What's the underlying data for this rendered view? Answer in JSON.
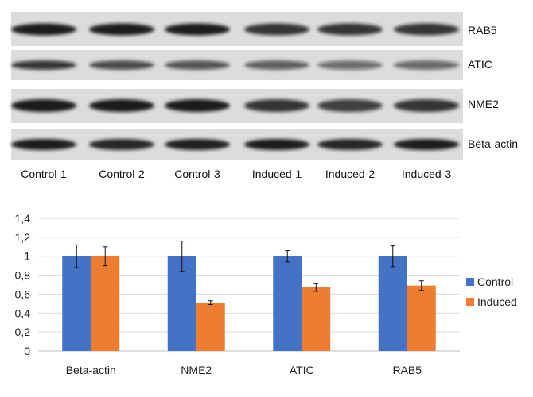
{
  "blot": {
    "proteins": [
      "RAB5",
      "ATIC",
      "NME2",
      "Beta-actin"
    ],
    "samples": [
      "Control-1",
      "Control-2",
      "Control-3",
      "Induced-1",
      "Induced-2",
      "Induced-3"
    ],
    "background_color": "#dcdcdc",
    "band_color": "#1a1a1a"
  },
  "chart_data": {
    "type": "bar",
    "categories": [
      "Beta-actin",
      "NME2",
      "ATIC",
      "RAB5"
    ],
    "series": [
      {
        "name": "Control",
        "color": "#4472c4",
        "values": [
          1.0,
          1.0,
          1.0,
          1.0
        ],
        "errors": [
          0.12,
          0.16,
          0.06,
          0.11
        ]
      },
      {
        "name": "Induced",
        "color": "#ed7d31",
        "values": [
          1.0,
          0.51,
          0.67,
          0.69
        ],
        "errors": [
          0.1,
          0.02,
          0.04,
          0.05
        ]
      }
    ],
    "ylim": [
      0,
      1.4
    ],
    "yticks": [
      "0",
      "0,2",
      "0,4",
      "0,6",
      "0,8",
      "1",
      "1,2",
      "1,4"
    ],
    "grid": true,
    "legend_position": "right"
  }
}
